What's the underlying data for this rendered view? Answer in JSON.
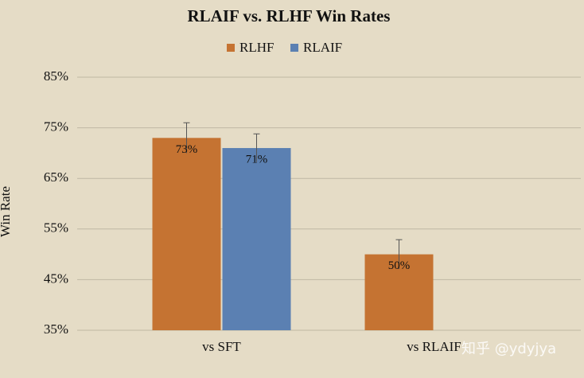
{
  "chart_data": {
    "type": "bar",
    "title": "RLAIF vs. RLHF Win Rates",
    "y_label": "Win Rate",
    "categories": [
      "vs SFT",
      "vs RLAIF"
    ],
    "series": [
      {
        "name": "RLHF",
        "color": "#c57332",
        "values": [
          73,
          50
        ],
        "value_labels": [
          "73%",
          "50%"
        ],
        "errors": [
          3,
          2.9
        ]
      },
      {
        "name": "RLAIF",
        "color": "#5b80b2",
        "values": [
          71,
          null
        ],
        "value_labels": [
          "71%",
          null
        ],
        "errors": [
          2.8,
          null
        ]
      }
    ],
    "ylim": [
      35,
      85
    ],
    "yticks": [
      {
        "value": 35,
        "label": "35%"
      },
      {
        "value": 45,
        "label": "45%"
      },
      {
        "value": 55,
        "label": "55%"
      },
      {
        "value": 65,
        "label": "65%"
      },
      {
        "value": 75,
        "label": "75%"
      },
      {
        "value": 85,
        "label": "85%"
      }
    ],
    "grid": true,
    "legend": "top",
    "watermark": "知乎 @ydyjya"
  }
}
